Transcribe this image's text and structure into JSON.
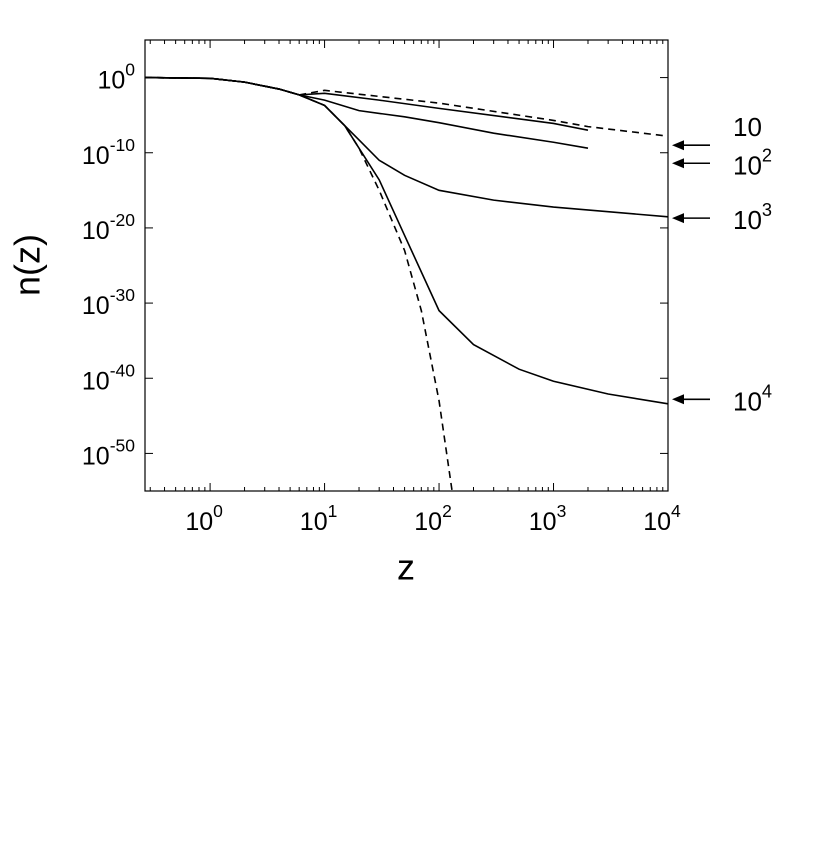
{
  "chart_data": {
    "type": "line",
    "xlabel": "z",
    "ylabel": "n(z)",
    "xscale": "log",
    "yscale": "log",
    "xlim": [
      0.27,
      10000
    ],
    "ylim": [
      1e-55,
      100000.0
    ],
    "xticks": [
      {
        "value": 1,
        "label": "10^0"
      },
      {
        "value": 10,
        "label": "10^1"
      },
      {
        "value": 100,
        "label": "10^2"
      },
      {
        "value": 1000,
        "label": "10^3"
      },
      {
        "value": 10000,
        "label": "10^4"
      }
    ],
    "yticks": [
      {
        "value": 1,
        "label": "10^0"
      },
      {
        "value": 1e-10,
        "label": "10^-10"
      },
      {
        "value": 1e-20,
        "label": "10^-20"
      },
      {
        "value": 1e-30,
        "label": "10^-30"
      },
      {
        "value": 1e-40,
        "label": "10^-40"
      },
      {
        "value": 1e-50,
        "label": "10^-50"
      }
    ],
    "series": [
      {
        "color": "#000000",
        "linestyle": "dashed",
        "x": [
          0.27,
          1,
          2,
          4,
          6,
          10,
          100,
          1000,
          2000,
          10000
        ],
        "values": [
          1,
          0.8,
          0.25,
          0.03,
          0.005,
          0.02,
          0.0004,
          2e-06,
          3e-07,
          1.6e-08
        ]
      },
      {
        "color": "#000000",
        "linestyle": "dashed",
        "x": [
          0.27,
          1,
          2,
          4,
          6,
          10,
          15,
          20,
          30,
          50,
          70,
          100,
          130
        ],
        "values": [
          1,
          0.8,
          0.25,
          0.03,
          0.005,
          0.0002,
          4e-07,
          4e-10,
          1e-15,
          1e-23,
          1e-31,
          1e-43,
          1e-55
        ]
      },
      {
        "color": "#000000",
        "linestyle": "solid",
        "x": [
          0.27,
          1,
          2,
          4,
          6,
          10,
          30,
          100,
          1000,
          2000
        ],
        "values": [
          1,
          0.8,
          0.25,
          0.03,
          0.005,
          0.008,
          0.001,
          8e-05,
          8e-07,
          1e-07
        ]
      },
      {
        "color": "#000000",
        "linestyle": "solid",
        "x": [
          0.27,
          1,
          2,
          4,
          6,
          10,
          20,
          50,
          100,
          300,
          1000,
          2000
        ],
        "values": [
          1,
          0.8,
          0.25,
          0.03,
          0.005,
          0.001,
          4e-05,
          6e-06,
          1e-06,
          4e-08,
          2.5e-09,
          4e-10
        ]
      },
      {
        "color": "#000000",
        "linestyle": "solid",
        "x": [
          0.27,
          1,
          2,
          4,
          6,
          10,
          20,
          30,
          50,
          100,
          300,
          1000,
          10000
        ],
        "values": [
          1,
          0.8,
          0.25,
          0.03,
          0.005,
          0.0002,
          5e-09,
          1e-11,
          1e-13,
          1e-15,
          5e-17,
          6e-18,
          3e-19
        ]
      },
      {
        "color": "#000000",
        "linestyle": "solid",
        "x": [
          0.27,
          1,
          2,
          4,
          6,
          10,
          15,
          20,
          30,
          50,
          100,
          200,
          500,
          1000,
          3000,
          10000
        ],
        "values": [
          1,
          0.8,
          0.25,
          0.03,
          0.005,
          0.0002,
          4e-07,
          4e-10,
          2.5e-14,
          1e-21,
          1e-31,
          3e-36,
          1.6e-39,
          4e-41,
          8e-43,
          4e-44
        ]
      }
    ],
    "annotations": [
      {
        "label": "10",
        "y": 1e-09
      },
      {
        "label": "10^2",
        "y": 4e-12
      },
      {
        "label": "10^3",
        "y": 2e-19
      },
      {
        "label": "10^4",
        "y": 1.6e-43
      }
    ]
  }
}
